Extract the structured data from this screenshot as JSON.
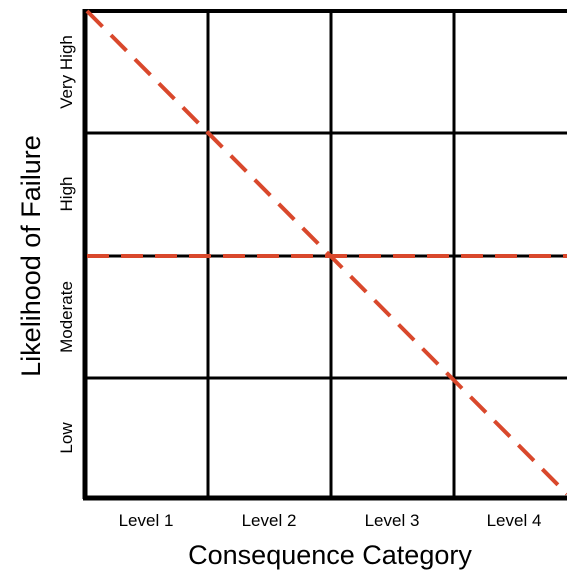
{
  "y_axis": {
    "title": "Likelihood of Failure",
    "levels": [
      "Very High",
      "High",
      "Moderate",
      "Low"
    ]
  },
  "x_axis": {
    "title": "Consequence Category",
    "levels": [
      "Level 1",
      "Level 2",
      "Level 3",
      "Level 4"
    ]
  },
  "colors": {
    "grid": "#000000",
    "threshold_line": "#d9482c"
  }
}
